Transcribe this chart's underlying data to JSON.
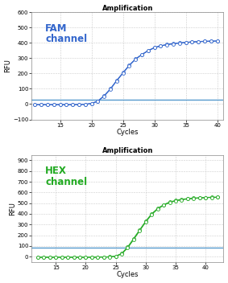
{
  "top_title": "Amplification",
  "bottom_title": "Amplification",
  "fam_label": "FAM\nchannel",
  "hex_label": "HEX\nchannel",
  "fam_color": "#3366cc",
  "hex_color": "#22aa22",
  "threshold_color_fam": "#5599cc",
  "threshold_color_hex": "#5599cc",
  "xlabel": "Cycles",
  "ylabel": "RFU",
  "fam_xlim": [
    10.5,
    41
  ],
  "fam_ylim": [
    -100,
    600
  ],
  "fam_yticks": [
    -100,
    0,
    100,
    200,
    300,
    400,
    500,
    600
  ],
  "fam_xticks": [
    15,
    20,
    25,
    30,
    35,
    40
  ],
  "fam_threshold": 30,
  "hex_xlim": [
    11,
    43
  ],
  "hex_ylim": [
    -50,
    950
  ],
  "hex_yticks": [
    0,
    100,
    200,
    300,
    400,
    500,
    600,
    700,
    800,
    900
  ],
  "hex_xticks": [
    15,
    20,
    25,
    30,
    35,
    40
  ],
  "hex_threshold": 85,
  "fig_bg": "#ffffff",
  "plot_bg": "#ffffff",
  "fam_x": [
    11,
    12,
    13,
    14,
    15,
    16,
    17,
    18,
    19,
    20,
    21,
    22,
    23,
    24,
    25,
    26,
    27,
    28,
    29,
    30,
    31,
    32,
    33,
    34,
    35,
    36,
    37,
    38,
    39,
    40
  ],
  "fam_y": [
    -3,
    -3,
    -3,
    -3,
    -3,
    -3,
    -3,
    -2,
    -1,
    5,
    20,
    55,
    100,
    155,
    205,
    255,
    295,
    325,
    350,
    370,
    382,
    390,
    396,
    400,
    404,
    407,
    409,
    411,
    412,
    413
  ],
  "fam_y2": [
    -4,
    -4,
    -4,
    -4,
    -4,
    -4,
    -4,
    -3,
    -2,
    4,
    18,
    52,
    97,
    152,
    202,
    252,
    293,
    323,
    348,
    368,
    380,
    388,
    394,
    399,
    403,
    406,
    408,
    410,
    411,
    412
  ],
  "hex_x": [
    12,
    13,
    14,
    15,
    16,
    17,
    18,
    19,
    20,
    21,
    22,
    23,
    24,
    25,
    26,
    27,
    28,
    29,
    30,
    31,
    32,
    33,
    34,
    35,
    36,
    37,
    38,
    39,
    40,
    41,
    42
  ],
  "hex_y": [
    -5,
    -5,
    -5,
    -5,
    -5,
    -5,
    -5,
    -5,
    -5,
    -5,
    -4,
    -3,
    -2,
    5,
    30,
    90,
    170,
    250,
    330,
    400,
    450,
    485,
    510,
    525,
    535,
    542,
    547,
    550,
    553,
    555,
    556
  ],
  "hex_y2": [
    -6,
    -6,
    -6,
    -6,
    -6,
    -6,
    -6,
    -6,
    -6,
    -6,
    -5,
    -4,
    -3,
    3,
    25,
    82,
    160,
    242,
    322,
    393,
    444,
    480,
    505,
    521,
    531,
    539,
    544,
    548,
    551,
    553,
    554
  ]
}
